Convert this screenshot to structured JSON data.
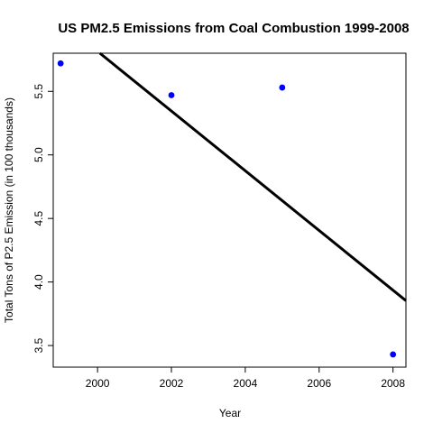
{
  "chart_data": {
    "type": "scatter",
    "title": "US PM2.5 Emissions from Coal Combustion 1999-2008",
    "xlabel": "Year",
    "ylabel": "Total Tons of P2.5 Emission (in 100 thousands)",
    "xlim": [
      1998.8,
      2008.35
    ],
    "ylim": [
      3.33,
      5.8
    ],
    "x_ticks": [
      2000,
      2002,
      2004,
      2006,
      2008
    ],
    "y_ticks": [
      3.5,
      4.0,
      4.5,
      5.0,
      5.5
    ],
    "y_tick_labels": [
      "3.5",
      "4.0",
      "4.5",
      "5.0",
      "5.5"
    ],
    "series": [
      {
        "x": [
          1999,
          2002,
          2005,
          2008
        ],
        "y": [
          5.72,
          5.47,
          5.53,
          3.43
        ],
        "color": "#0000ff"
      }
    ],
    "fit_line": {
      "intercept_at_1999": 6.05,
      "slope": -0.235,
      "color": "#000000"
    },
    "grid": false,
    "legend": "none"
  }
}
